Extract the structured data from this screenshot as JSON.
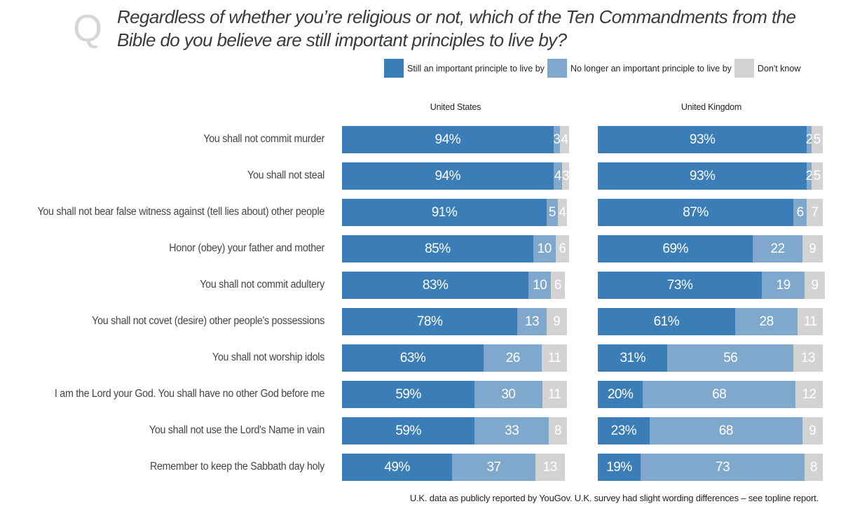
{
  "header": {
    "q_mark": "Q",
    "title": "Regardless of whether you’re religious or not, which of the Ten Commandments from the Bible do you believe are still important principles to live by?"
  },
  "legend": [
    {
      "label": "Still an important principle to live by",
      "color": "#3b7db7"
    },
    {
      "label": "No longer an important principle to live by",
      "color": "#7fa8cc"
    },
    {
      "label": "Don't know",
      "color": "#d3d3d3"
    }
  ],
  "footnote": "U.K. data as publicly reported by YouGov. U.K. survey had slight wording differences – see topline report.",
  "chart_data": {
    "type": "bar",
    "orientation": "horizontal",
    "stacked": true,
    "categories": [
      "You shall not commit murder",
      "You shall not steal",
      "You shall not bear false witness against (tell lies about) other people",
      "Honor (obey) your father and mother",
      "You shall not commit adultery",
      "You shall not covet (desire) other people's possessions",
      "You shall not worship idols",
      "I am the Lord your God. You shall have no other God before me",
      "You shall not use the Lord's Name in vain",
      "Remember to keep the Sabbath day holy"
    ],
    "panels": [
      {
        "name": "United States",
        "series": [
          {
            "name": "Still an important principle to live by",
            "values": [
              94,
              94,
              91,
              85,
              83,
              78,
              63,
              59,
              59,
              49
            ],
            "labels": [
              "94%",
              "94%",
              "91%",
              "85%",
              "83%",
              "78%",
              "63%",
              "59%",
              "59%",
              "49%"
            ]
          },
          {
            "name": "No longer an important principle to live by",
            "values": [
              3,
              4,
              5,
              10,
              10,
              13,
              26,
              30,
              33,
              37
            ],
            "labels": [
              "3",
              "4",
              "5",
              "10",
              "10",
              "13",
              "26",
              "30",
              "33",
              "37"
            ]
          },
          {
            "name": "Don't know",
            "values": [
              4,
              3,
              4,
              6,
              6,
              9,
              11,
              11,
              8,
              13
            ],
            "labels": [
              "4",
              "3",
              "4",
              "6",
              "6",
              "9",
              "11",
              "11",
              "8",
              "13"
            ]
          }
        ]
      },
      {
        "name": "United Kingdom",
        "series": [
          {
            "name": "Still an important principle to live by",
            "values": [
              93,
              93,
              87,
              69,
              73,
              61,
              31,
              20,
              23,
              19
            ],
            "labels": [
              "93%",
              "93%",
              "87%",
              "69%",
              "73%",
              "61%",
              "31%",
              "20%",
              "23%",
              "19%"
            ]
          },
          {
            "name": "No longer an important principle to live by",
            "values": [
              2,
              2,
              6,
              22,
              19,
              28,
              56,
              68,
              68,
              73
            ],
            "labels": [
              "2",
              "2",
              "6",
              "22",
              "19",
              "28",
              "56",
              "68",
              "68",
              "73"
            ]
          },
          {
            "name": "Don't know",
            "values": [
              5,
              5,
              7,
              9,
              9,
              11,
              13,
              12,
              9,
              8
            ],
            "labels": [
              "5",
              "5",
              "7",
              "9",
              "9",
              "11",
              "13",
              "12",
              "9",
              "8"
            ]
          }
        ]
      }
    ],
    "xlim": [
      0,
      101
    ],
    "grid": false,
    "legend_position": "top-right"
  }
}
